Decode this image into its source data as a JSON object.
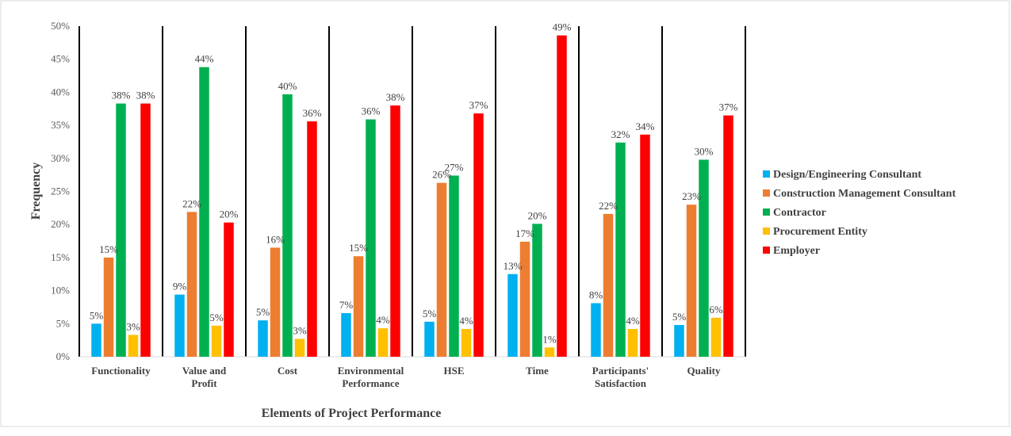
{
  "chart_data": {
    "type": "bar",
    "title": "",
    "xlabel": "Elements of Project Performance",
    "ylabel": "Frequency",
    "ylim": [
      0,
      50
    ],
    "yticks": [
      0,
      5,
      10,
      15,
      20,
      25,
      30,
      35,
      40,
      45,
      50
    ],
    "tick_suffix": "%",
    "grid": false,
    "legend_position": "right",
    "categories": [
      [
        "Functionality"
      ],
      [
        "Value and",
        "Profit"
      ],
      [
        "Cost"
      ],
      [
        "Environmental",
        "Performance"
      ],
      [
        "HSE"
      ],
      [
        "Time"
      ],
      [
        "Participants'",
        "Satisfaction"
      ],
      [
        "Quality"
      ]
    ],
    "series": [
      {
        "name": "Design/Engineering Consultant",
        "color": "#00b0f0",
        "values": [
          5,
          9.4,
          5.5,
          6.6,
          5.3,
          12.5,
          8.1,
          4.8
        ],
        "labels": [
          "5%",
          "9%",
          "5%",
          "7%",
          "5%",
          "13%",
          "8%",
          "5%"
        ]
      },
      {
        "name": "Construction Management Consultant",
        "color": "#ed7d31",
        "values": [
          15,
          21.9,
          16.5,
          15.2,
          26.3,
          17.4,
          21.6,
          23
        ],
        "labels": [
          "15%",
          "22%",
          "16%",
          "15%",
          "26%",
          "17%",
          "22%",
          "23%"
        ]
      },
      {
        "name": "Contractor",
        "color": "#00b050",
        "values": [
          38.3,
          43.8,
          39.7,
          35.9,
          27.4,
          20.1,
          32.4,
          29.8
        ],
        "labels": [
          "38%",
          "44%",
          "40%",
          "36%",
          "27%",
          "20%",
          "32%",
          "30%"
        ]
      },
      {
        "name": "Procurement Entity",
        "color": "#ffc000",
        "values": [
          3.3,
          4.7,
          2.7,
          4.3,
          4.2,
          1.4,
          4.2,
          5.9
        ],
        "labels": [
          "3%",
          "5%",
          "3%",
          "4%",
          "4%",
          "1%",
          "4%",
          "6%"
        ]
      },
      {
        "name": "Employer",
        "color": "#ff0000",
        "values": [
          38.3,
          20.3,
          35.6,
          38,
          36.8,
          48.6,
          33.6,
          36.5
        ],
        "labels": [
          "38%",
          "20%",
          "36%",
          "38%",
          "37%",
          "49%",
          "34%",
          "37%"
        ]
      }
    ]
  }
}
